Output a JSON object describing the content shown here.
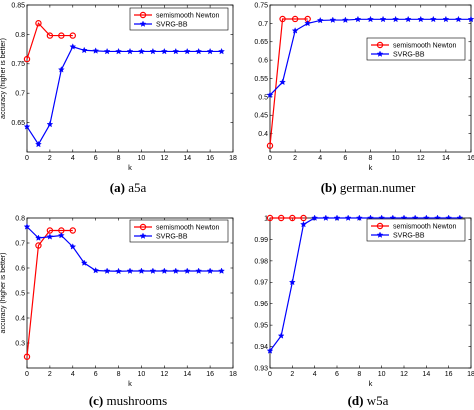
{
  "chart_data": [
    {
      "type": "line",
      "caption_tag": "(a)",
      "caption_name": "a5a",
      "xlabel": "k",
      "ylabel": "accuracy (higher is better)",
      "xlim": [
        0,
        18
      ],
      "ylim": [
        0.6,
        0.85
      ],
      "xticks": [
        "0",
        "2",
        "4",
        "6",
        "8",
        "10",
        "12",
        "14",
        "16",
        "18"
      ],
      "yticks": [
        "0.65",
        "0.7",
        "0.75",
        "0.8",
        "0.85"
      ],
      "legend_position": "top-right",
      "series": [
        {
          "name": "semismooth Newton",
          "color": "#ff0000",
          "marker": "circle",
          "x": [
            0,
            1,
            2,
            3,
            4
          ],
          "y": [
            0.758,
            0.819,
            0.798,
            0.798,
            0.798
          ]
        },
        {
          "name": "SVRG-BB",
          "color": "#0000ff",
          "marker": "star",
          "x": [
            0,
            1,
            2,
            3,
            4,
            5,
            6,
            7,
            8,
            9,
            10,
            11,
            12,
            13,
            14,
            15,
            16,
            17
          ],
          "y": [
            0.643,
            0.613,
            0.647,
            0.74,
            0.779,
            0.773,
            0.772,
            0.771,
            0.771,
            0.771,
            0.771,
            0.771,
            0.771,
            0.771,
            0.771,
            0.771,
            0.771,
            0.771
          ]
        }
      ]
    },
    {
      "type": "line",
      "caption_tag": "(b)",
      "caption_name": "german.numer",
      "xlabel": "k",
      "ylabel": "",
      "xlim": [
        0,
        16
      ],
      "ylim": [
        0.35,
        0.75
      ],
      "xticks": [
        "0",
        "2",
        "4",
        "6",
        "8",
        "10",
        "12",
        "14",
        "16"
      ],
      "yticks": [
        "0.4",
        "0.45",
        "0.5",
        "0.55",
        "0.6",
        "0.65",
        "0.7",
        "0.75"
      ],
      "legend_position": "right",
      "series": [
        {
          "name": "semismooth Newton",
          "color": "#ff0000",
          "marker": "circle",
          "x": [
            0,
            1,
            2,
            3
          ],
          "y": [
            0.367,
            0.712,
            0.712,
            0.712
          ]
        },
        {
          "name": "SVRG-BB",
          "color": "#0000ff",
          "marker": "star",
          "x": [
            0,
            1,
            2,
            3,
            4,
            5,
            6,
            7,
            8,
            9,
            10,
            11,
            12,
            13,
            14,
            15,
            16
          ],
          "y": [
            0.505,
            0.54,
            0.68,
            0.7,
            0.708,
            0.709,
            0.709,
            0.711,
            0.711,
            0.711,
            0.711,
            0.711,
            0.711,
            0.711,
            0.711,
            0.711,
            0.711
          ]
        }
      ]
    },
    {
      "type": "line",
      "caption_tag": "(c)",
      "caption_name": "mushrooms",
      "xlabel": "k",
      "ylabel": "accuracy (higher is better)",
      "xlim": [
        0,
        18
      ],
      "ylim": [
        0.2,
        0.8
      ],
      "xticks": [
        "0",
        "2",
        "4",
        "6",
        "8",
        "10",
        "12",
        "14",
        "16",
        "18"
      ],
      "yticks": [
        "0.3",
        "0.4",
        "0.5",
        "0.6",
        "0.7",
        "0.8"
      ],
      "legend_position": "top-right",
      "series": [
        {
          "name": "semismooth Newton",
          "color": "#ff0000",
          "marker": "circle",
          "x": [
            0,
            1,
            2,
            3,
            4
          ],
          "y": [
            0.245,
            0.69,
            0.75,
            0.75,
            0.75
          ]
        },
        {
          "name": "SVRG-BB",
          "color": "#0000ff",
          "marker": "star",
          "x": [
            0,
            1,
            2,
            3,
            4,
            5,
            6,
            7,
            8,
            9,
            10,
            11,
            12,
            13,
            14,
            15,
            16,
            17
          ],
          "y": [
            0.765,
            0.72,
            0.725,
            0.73,
            0.685,
            0.62,
            0.59,
            0.588,
            0.587,
            0.588,
            0.588,
            0.588,
            0.588,
            0.588,
            0.588,
            0.588,
            0.588,
            0.588
          ]
        }
      ]
    },
    {
      "type": "line",
      "caption_tag": "(d)",
      "caption_name": "w5a",
      "xlabel": "k",
      "ylabel": "",
      "xlim": [
        0,
        18
      ],
      "ylim": [
        0.93,
        1.0
      ],
      "xticks": [
        "0",
        "2",
        "4",
        "6",
        "8",
        "10",
        "12",
        "14",
        "16",
        "18"
      ],
      "yticks": [
        "0.93",
        "0.94",
        "0.95",
        "0.96",
        "0.97",
        "0.98",
        "0.99",
        "1"
      ],
      "legend_position": "top-right",
      "series": [
        {
          "name": "semismooth Newton",
          "color": "#ff0000",
          "marker": "circle",
          "x": [
            0,
            1,
            2,
            3
          ],
          "y": [
            1.0,
            1.0,
            1.0,
            1.0
          ]
        },
        {
          "name": "SVRG-BB",
          "color": "#0000ff",
          "marker": "star",
          "x": [
            0,
            1,
            2,
            3,
            4,
            5,
            6,
            7,
            8,
            9,
            10,
            11,
            12,
            13,
            14,
            15,
            16,
            17
          ],
          "y": [
            0.938,
            0.945,
            0.97,
            0.997,
            1.0,
            1.0,
            1.0,
            1.0,
            1.0,
            1.0,
            1.0,
            1.0,
            1.0,
            1.0,
            1.0,
            1.0,
            1.0,
            1.0
          ]
        }
      ]
    }
  ]
}
